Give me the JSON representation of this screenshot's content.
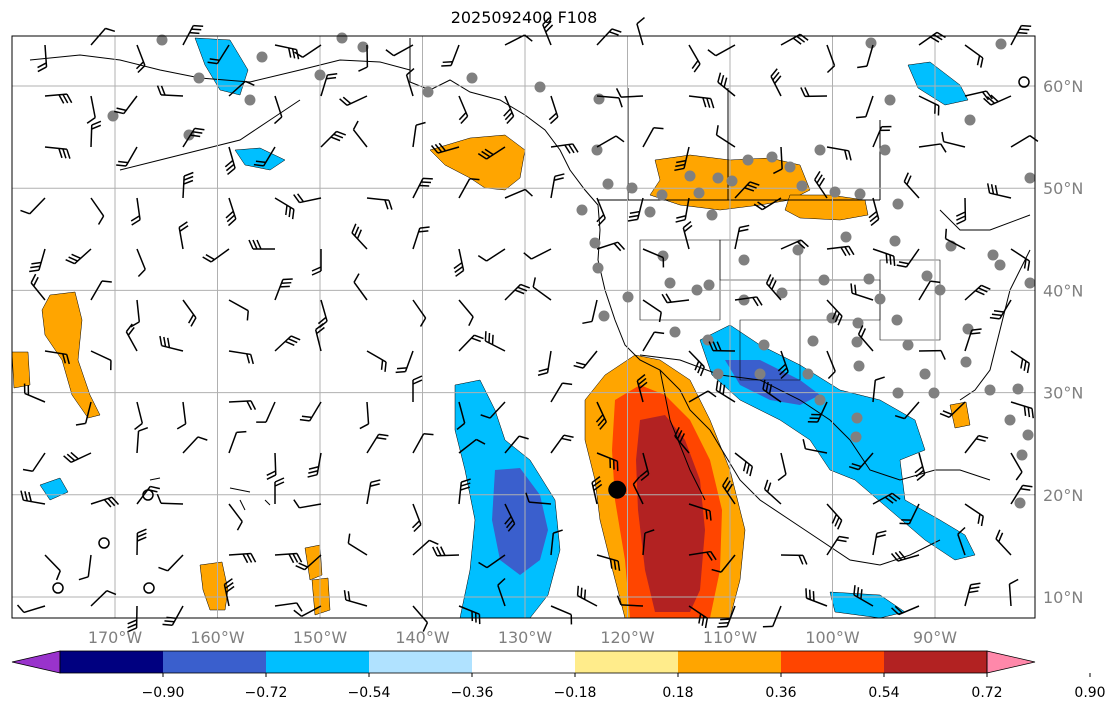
{
  "title": "2025092400 F108",
  "longitude_labels": [
    "170°W",
    "160°W",
    "150°W",
    "140°W",
    "130°W",
    "120°W",
    "110°W",
    "100°W",
    "90°W"
  ],
  "latitude_labels": [
    "60°N",
    "50°N",
    "40°N",
    "30°N",
    "20°N",
    "10°N"
  ],
  "colorbar": {
    "colors": [
      "#9933cc",
      "#000080",
      "#3a5fcd",
      "#00bfff",
      "#b0e2ff",
      "#ffffff",
      "#ffec8b",
      "#ffa500",
      "#ff4500",
      "#b22222",
      "#ff88aa"
    ],
    "tick_labels": [
      "−0.90",
      "−0.72",
      "−0.54",
      "−0.36",
      "−0.18",
      "0.18",
      "0.36",
      "0.54",
      "0.72",
      "0.90"
    ]
  },
  "colors": {
    "land_outline": "#000000",
    "grid": "#b0b0b0",
    "station_dot": "#808080",
    "barb": "#000000"
  },
  "marker": {
    "longitude": -121,
    "latitude": 20.5,
    "color": "#000000"
  }
}
